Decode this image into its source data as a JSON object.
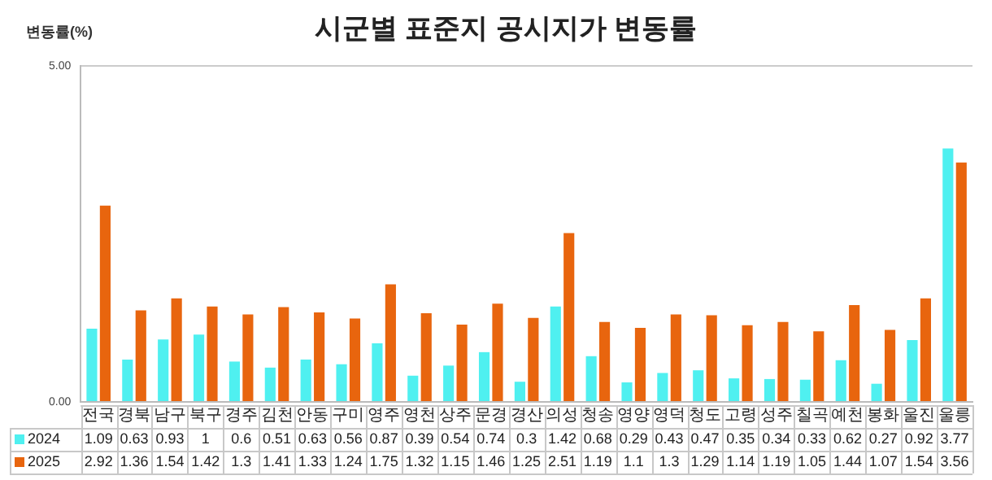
{
  "chart_data": {
    "type": "bar",
    "title": "시군별 표준지 공시지가 변동률",
    "ylabel": "변동률(%)",
    "categories": [
      "전국",
      "경북",
      "남구",
      "북구",
      "경주",
      "김천",
      "안동",
      "구미",
      "영주",
      "영천",
      "상주",
      "문경",
      "경산",
      "의성",
      "청송",
      "영양",
      "영덕",
      "청도",
      "고령",
      "성주",
      "칠곡",
      "예천",
      "봉화",
      "울진",
      "울릉"
    ],
    "series": [
      {
        "name": "2024",
        "color": "#4ff0f0",
        "values": [
          1.09,
          0.63,
          0.93,
          1,
          0.6,
          0.51,
          0.63,
          0.56,
          0.87,
          0.39,
          0.54,
          0.74,
          0.3,
          1.42,
          0.68,
          0.29,
          0.43,
          0.47,
          0.35,
          0.34,
          0.33,
          0.62,
          0.27,
          0.92,
          3.77
        ]
      },
      {
        "name": "2025",
        "color": "#e8650e",
        "values": [
          2.92,
          1.36,
          1.54,
          1.42,
          1.3,
          1.41,
          1.33,
          1.24,
          1.75,
          1.32,
          1.15,
          1.46,
          1.25,
          2.51,
          1.19,
          1.1,
          1.3,
          1.29,
          1.14,
          1.19,
          1.05,
          1.44,
          1.07,
          1.54,
          3.56
        ]
      }
    ],
    "ylim": [
      0,
      5
    ],
    "yticks": [
      {
        "value": 0,
        "label": "0.00"
      },
      {
        "value": 5,
        "label": "5.00"
      }
    ],
    "grid": false,
    "data_labels": true,
    "legend": "bottom"
  }
}
